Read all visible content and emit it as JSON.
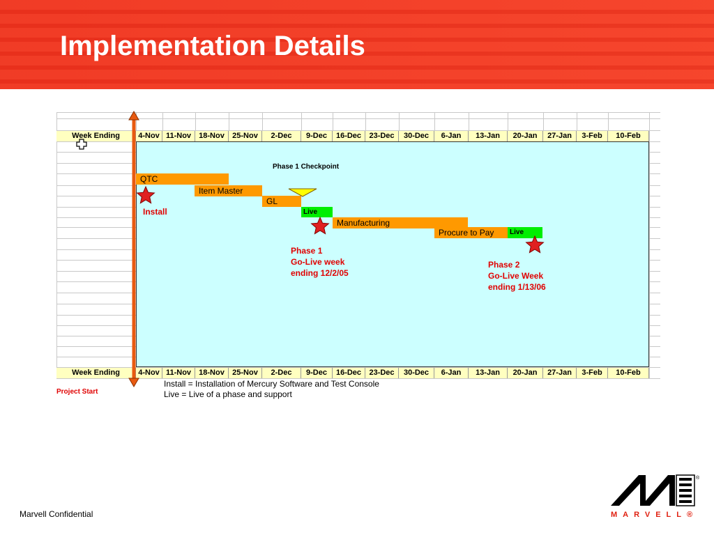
{
  "slide": {
    "title": "Implementation Details",
    "footer": "Marvell Confidential",
    "brand": "MARVELL®",
    "colors": {
      "header": "#f4422a",
      "chart_bg": "#ccffff",
      "bar_orange": "#ff9900",
      "bar_green": "#00ee00",
      "text_red": "#e00000"
    }
  },
  "gantt": {
    "row_header": "Week Ending",
    "weeks": [
      "4-Nov",
      "11-Nov",
      "18-Nov",
      "25-Nov",
      "2-Dec",
      "9-Dec",
      "16-Dec",
      "23-Dec",
      "30-Dec",
      "6-Jan",
      "13-Jan",
      "20-Jan",
      "27-Jan",
      "3-Feb",
      "10-Feb"
    ],
    "bars": {
      "qtc": "QTC",
      "item_master": "Item Master",
      "gl": "GL",
      "live1": "Live",
      "manufacturing": "Manufacturing",
      "procure_to_pay": "Procure to Pay",
      "live2": "Live"
    },
    "checkpoint": "Phase 1 Checkpoint",
    "install": "Install",
    "phase1": [
      "Phase 1",
      "Go-Live week",
      "ending 12/2/05"
    ],
    "phase2": [
      "Phase 2",
      "Go-Live Week",
      "ending 1/13/06"
    ],
    "project_start": "Project Start",
    "legend": [
      "Install = Installation of Mercury Software and Test Console",
      "Live = Live of a phase and support"
    ],
    "icons": {
      "milestone": "star-icon",
      "checkpoint": "triangle-icon",
      "start": "plus-cursor-icon",
      "timeline": "double-arrow-icon"
    }
  }
}
